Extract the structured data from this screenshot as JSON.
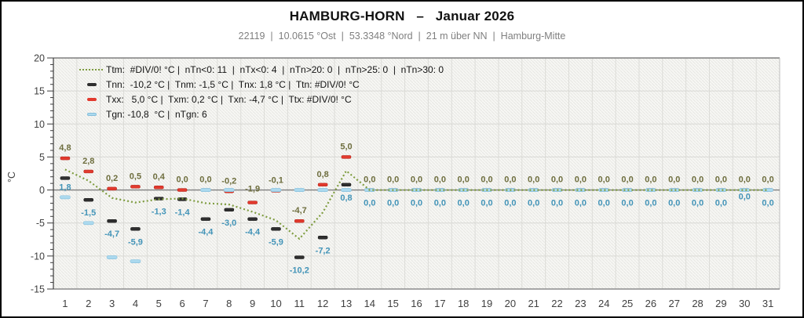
{
  "header": {
    "title": "HAMBURG-HORN   –   Januar 2026",
    "subtitle": "22119  |  10.0615 °Ost  |  53.3348 °Nord  |  21 m über NN  |  Hamburg-Mitte"
  },
  "legend": {
    "rows": [
      {
        "marker": "ttm-dotted-line",
        "color": "#7E9C3F",
        "text": "Ttm:  #DIV/0! °C |  nTn<0: 11  |  nTx<0: 4  |  nTn>20: 0  |  nTn>25: 0  |  nTn>30: 0"
      },
      {
        "marker": "tnn-dash",
        "color": "#2F2F2F",
        "text": "Tnn:  -10,2 °C |  Tnm: -1,5 °C |  Tnx: 1,8 °C |  Ttn: #DIV/0! °C"
      },
      {
        "marker": "txx-dash",
        "color": "#E23A2E",
        "text": "Txx:   5,0 °C |  Txm: 0,2 °C |  Txn: -4,7 °C |  Ttx: #DIV/0! °C"
      },
      {
        "marker": "tgn-dash",
        "color": "#ABD9EE",
        "text": "Tgn: -10,8  °C |  nTgn: 6"
      }
    ]
  },
  "axes": {
    "y_title": "°C",
    "y_ticks": [
      20,
      15,
      10,
      5,
      0,
      -5,
      -10,
      -15
    ],
    "x_ticks": [
      1,
      2,
      3,
      4,
      5,
      6,
      7,
      8,
      9,
      10,
      11,
      12,
      13,
      14,
      15,
      16,
      17,
      18,
      19,
      20,
      21,
      22,
      23,
      24,
      25,
      26,
      27,
      28,
      29,
      30,
      31
    ]
  },
  "chart_data": {
    "type": "line",
    "title": "HAMBURG-HORN – Januar 2026",
    "xlabel": "",
    "ylabel": "°C",
    "ylim": [
      -15,
      20
    ],
    "grid": true,
    "legend_position": "top-left",
    "x": [
      1,
      2,
      3,
      4,
      5,
      6,
      7,
      8,
      9,
      10,
      11,
      12,
      13,
      14,
      15,
      16,
      17,
      18,
      19,
      20,
      21,
      22,
      23,
      24,
      25,
      26,
      27,
      28,
      29,
      30,
      31
    ],
    "series": [
      {
        "name": "Ttm",
        "style": "dotted-line",
        "color": "#7E9C3F",
        "values": [
          3.1,
          1.4,
          -1.2,
          -1.9,
          -1.4,
          -1.3,
          -2.0,
          -2.2,
          -3.3,
          -4.6,
          -7.4,
          -3.4,
          2.9,
          0,
          0,
          0,
          0,
          0,
          0,
          0,
          0,
          0,
          0,
          0,
          0,
          0,
          0,
          0,
          0,
          0,
          0
        ]
      },
      {
        "name": "Txx",
        "style": "dash",
        "color": "#E23A2E",
        "label_color": "#6E6E3E",
        "values": [
          4.8,
          2.8,
          0.2,
          0.5,
          0.4,
          0.0,
          0.0,
          -0.2,
          -1.9,
          -0.1,
          -4.7,
          0.8,
          5.0,
          0,
          0,
          0,
          0,
          0,
          0,
          0,
          0,
          0,
          0,
          0,
          0,
          0,
          0,
          0,
          0,
          0,
          0
        ],
        "labels": [
          "4,8",
          "2,8",
          "0,2",
          "0,5",
          "0,4",
          "0,0",
          "0,0",
          "-0,2",
          "-1,9",
          "-0,1",
          "-4,7",
          "0,8",
          "5,0",
          "0,0",
          "0,0",
          "0,0",
          "0,0",
          "0,0",
          "0,0",
          "0,0",
          "0,0",
          "0,0",
          "0,0",
          "0,0",
          "0,0",
          "0,0",
          "0,0",
          "0,0",
          "0,0",
          "0,0",
          "0,0"
        ]
      },
      {
        "name": "Tnn",
        "style": "dash",
        "color": "#2F2F2F",
        "label_color": "#4394B8",
        "values": [
          1.8,
          -1.5,
          -4.7,
          -5.9,
          -1.3,
          -1.4,
          -4.4,
          -3.0,
          -4.4,
          -5.9,
          -10.2,
          -7.2,
          0.8,
          0,
          0,
          0,
          0,
          0,
          0,
          0,
          0,
          0,
          0,
          0,
          0,
          0,
          0,
          0,
          0,
          0,
          0
        ],
        "labels": [
          "1,8",
          "-1,5",
          "-4,7",
          "-5,9",
          "-1,3",
          "-1,4",
          "-4,4",
          "-3,0",
          "-4,4",
          "-5,9",
          "-10,2",
          "-7,2",
          "0,8",
          "0,0",
          "0,0",
          "0,0",
          "0,0",
          "0,0",
          "0,0",
          "0,0",
          "0,0",
          "0,0",
          "0,0",
          "0,0",
          "0,0",
          "0,0",
          "0,0",
          "0,0",
          "0,0",
          "0,0",
          "0,0"
        ]
      },
      {
        "name": "Tgn",
        "style": "dash",
        "color": "#ABD9EE",
        "values": [
          -1.1,
          -5.0,
          -10.2,
          -10.8,
          null,
          null,
          0,
          0,
          null,
          0,
          0,
          0,
          0,
          0,
          0,
          0,
          0,
          0,
          0,
          0,
          0,
          0,
          0,
          0,
          0,
          0,
          0,
          0,
          0,
          0,
          0
        ]
      }
    ],
    "label_offsets": {
      "txx_default": -10,
      "tnn_default": 20,
      "txx": {
        "9": -14
      },
      "tnn": {
        "1": 15,
        "30": 12
      }
    }
  }
}
